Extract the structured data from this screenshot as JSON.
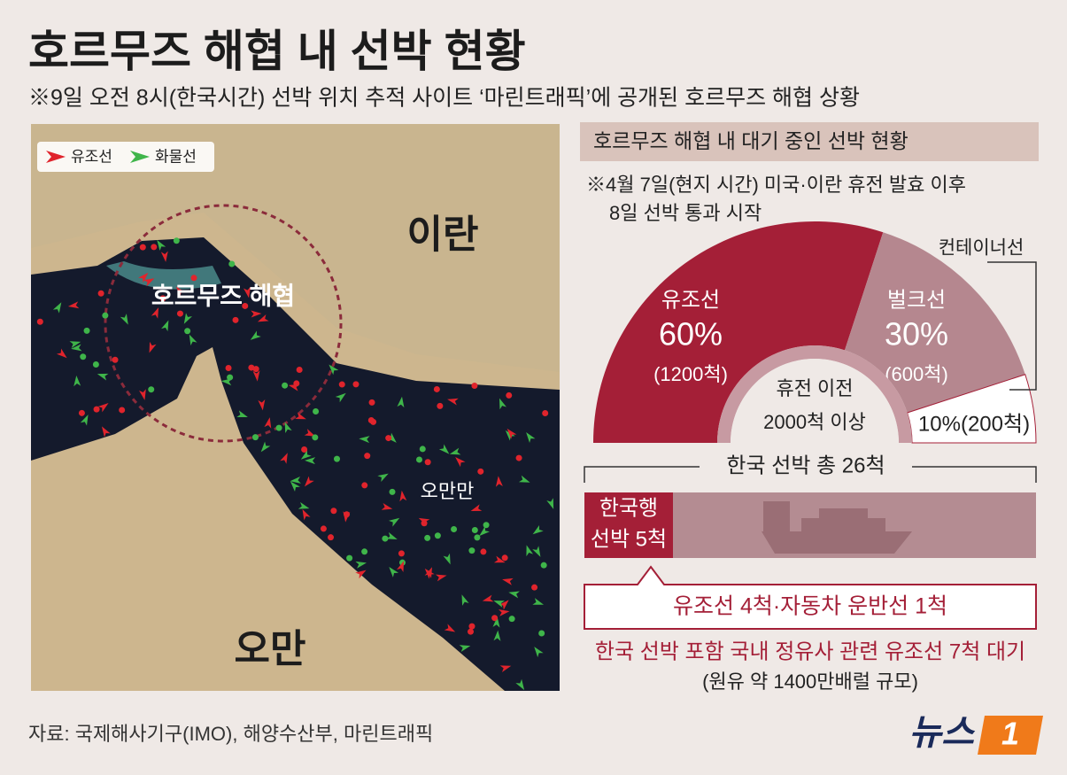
{
  "header": {
    "title": "호르무즈 해협 내 선박 현황",
    "subtitle": "※9일 오전 8시(한국시간) 선박 위치 추적 사이트 ‘마린트래픽’에 공개된 호르무즈 해협 상황"
  },
  "map": {
    "legend": [
      {
        "name": "유조선",
        "color": "#e0242c"
      },
      {
        "name": "화물선",
        "color": "#3fb54a"
      }
    ],
    "labels": {
      "iran": "이란",
      "strait": "호르무즈 해협",
      "gulf": "오만만",
      "oman": "오만"
    }
  },
  "panel": {
    "heading": "호르무즈 해협 내 대기 중인 선박 현황",
    "note": [
      "※4월 7일(현지 시간) 미국·이란 휴전 발효 이후",
      "8일 선박 통과 시작"
    ],
    "chart": {
      "segments": [
        {
          "name": "유조선",
          "value": 60,
          "value_label": "60%",
          "count": "(1200척)",
          "color": "#a41f37"
        },
        {
          "name": "벌크선",
          "value": 30,
          "value_label": "30%",
          "count": "(600척)",
          "color": "#b5878f"
        },
        {
          "name": "컨테이너선",
          "value": 10,
          "value_label": "10%(200척)",
          "color": "#ffffff"
        }
      ],
      "center": [
        "휴전 이전",
        "2000척 이상"
      ]
    },
    "korea": {
      "total": "한국 선박 총 26척",
      "bound": [
        "한국행",
        "선박 5척"
      ],
      "detail": "유조선 4척·자동차 운반선 1척"
    },
    "footnote": [
      "한국 선박 포함 국내 정유사 관련 유조선 7척 대기",
      "(원유 약 1400만배럴 규모)"
    ]
  },
  "source": "자료: 국제해사기구(IMO), 해양수산부, 마린트래픽",
  "logo": {
    "text": "뉴스",
    "mark": "1"
  }
}
